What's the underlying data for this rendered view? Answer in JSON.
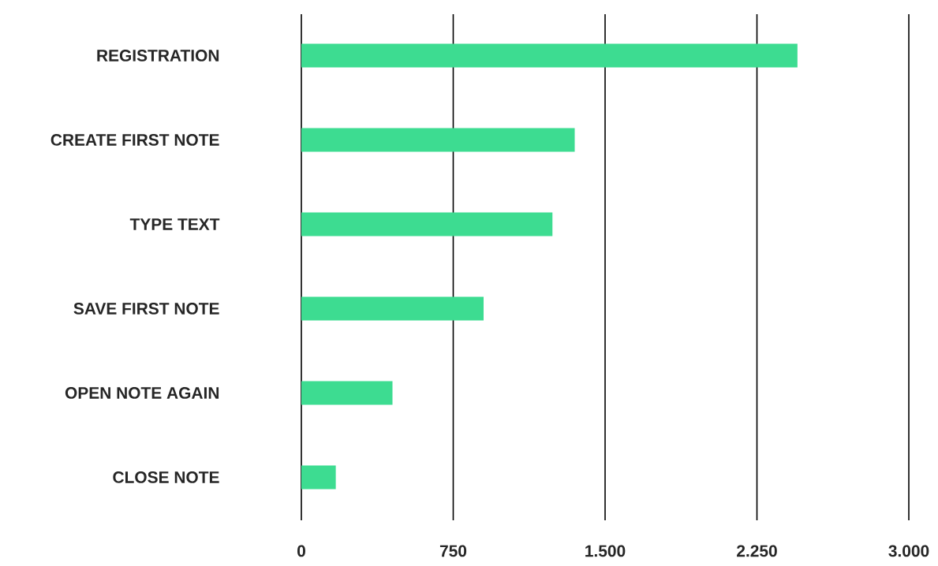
{
  "chart_data": {
    "type": "bar",
    "orientation": "horizontal",
    "categories": [
      "REGISTRATION",
      "CREATE FIRST NOTE",
      "TYPE TEXT",
      "SAVE FIRST NOTE",
      "OPEN NOTE AGAIN",
      "CLOSE NOTE"
    ],
    "values": [
      2450,
      1350,
      1240,
      900,
      450,
      170
    ],
    "color": "#3ddc91",
    "xlim": [
      0,
      3000
    ],
    "xticks": [
      0,
      750,
      {
        "value": 1500,
        "label": "1.500"
      },
      {
        "value": 2250,
        "label": "2.250"
      },
      {
        "value": 3000,
        "label": "3.000"
      }
    ],
    "grid": "x"
  }
}
